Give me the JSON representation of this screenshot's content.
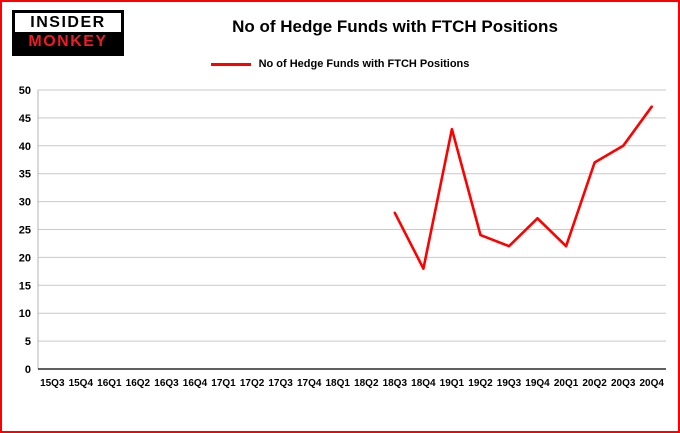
{
  "branding": {
    "logo_line1": "INSIDER",
    "logo_line2": "MONKEY"
  },
  "header": {
    "title": "No of Hedge Funds with FTCH Positions"
  },
  "legend": {
    "label": "No of Hedge Funds with FTCH Positions",
    "color": "#ff0000"
  },
  "chart_data": {
    "type": "line",
    "title": "No of Hedge Funds with FTCH Positions",
    "xlabel": "",
    "ylabel": "",
    "categories": [
      "15Q3",
      "15Q4",
      "16Q1",
      "16Q2",
      "16Q3",
      "16Q4",
      "17Q1",
      "17Q2",
      "17Q3",
      "17Q4",
      "18Q1",
      "18Q2",
      "18Q3",
      "18Q4",
      "19Q1",
      "19Q2",
      "19Q3",
      "19Q4",
      "20Q1",
      "20Q2",
      "20Q3",
      "20Q4"
    ],
    "series": [
      {
        "name": "No of Hedge Funds with FTCH Positions",
        "color": "#ff0000",
        "values": [
          null,
          null,
          null,
          null,
          null,
          null,
          null,
          null,
          null,
          null,
          null,
          null,
          28,
          18,
          43,
          24,
          22,
          27,
          22,
          37,
          40,
          47
        ]
      }
    ],
    "ylim": [
      0,
      50
    ],
    "ytick_step": 5,
    "grid": true,
    "legend_position": "top"
  }
}
